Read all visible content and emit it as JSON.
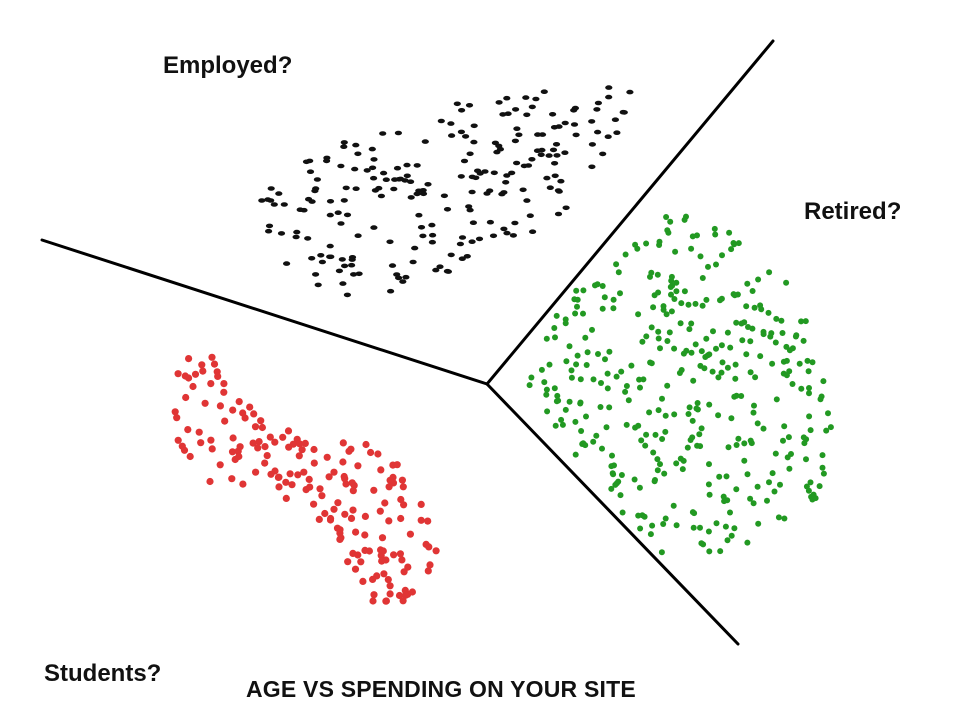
{
  "labels": {
    "employed": "Employed?",
    "retired": "Retired?",
    "students": "Students?",
    "title": "AGE VS SPENDING ON YOUR SITE"
  },
  "colors": {
    "employed": "#111111",
    "retired": "#229922",
    "students": "#e03535",
    "lines": "#000000",
    "background": "#ffffff"
  },
  "clusters": [
    {
      "key": "employed",
      "name": "Employed?",
      "approx_points": 220
    },
    {
      "key": "retired",
      "name": "Retired?",
      "approx_points": 380
    },
    {
      "key": "students",
      "name": "Students?",
      "approx_points": 180
    }
  ]
}
